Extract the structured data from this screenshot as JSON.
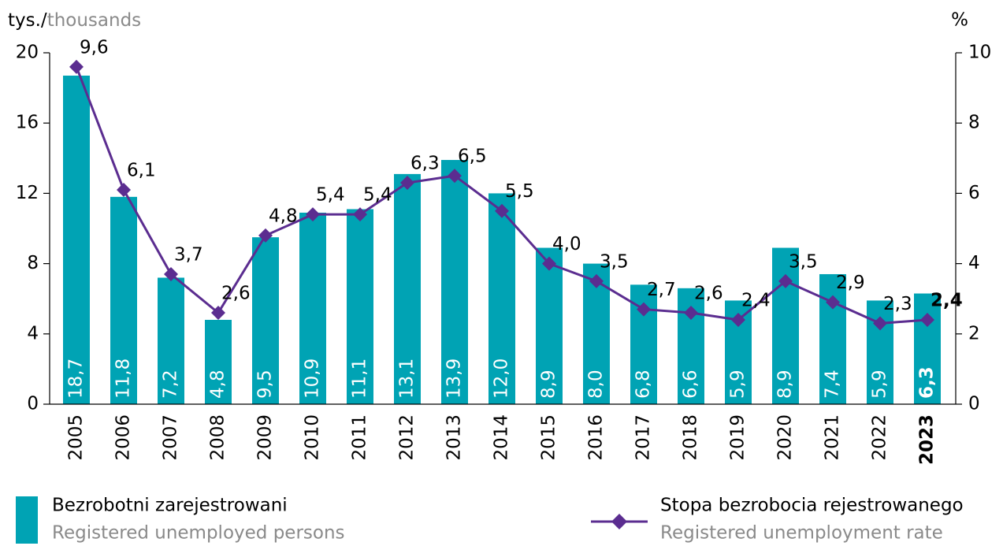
{
  "chart_data": {
    "type": "bar_line",
    "y_label": "tys./",
    "y_label_en": "thousands",
    "y2_label": "%",
    "categories": [
      "2005",
      "2006",
      "2007",
      "2008",
      "2009",
      "2010",
      "2011",
      "2012",
      "2013",
      "2014",
      "2015",
      "2016",
      "2017",
      "2018",
      "2019",
      "2020",
      "2021",
      "2022",
      "2023"
    ],
    "series": [
      {
        "name": "Bezrobotni zarejestrowani",
        "name_en": "Registered unemployed persons",
        "type": "bar",
        "color": "#00a3b4",
        "values": [
          18.7,
          11.8,
          7.2,
          4.8,
          9.5,
          10.9,
          11.1,
          13.1,
          13.9,
          12.0,
          8.9,
          8.0,
          6.8,
          6.6,
          5.9,
          8.9,
          7.4,
          5.9,
          6.3
        ],
        "value_labels": [
          "18,7",
          "11,8",
          "7,2",
          "4,8",
          "9,5",
          "10,9",
          "11,1",
          "13,1",
          "13,9",
          "12,0",
          "8,9",
          "8,0",
          "6,8",
          "6,6",
          "5,9",
          "8,9",
          "7,4",
          "5,9",
          "6,3"
        ]
      },
      {
        "name": "Stopa bezrobocia rejestrowanego",
        "name_en": "Registered unemployment rate",
        "type": "line",
        "axis": "y2",
        "color": "#5b2d90",
        "values": [
          9.6,
          6.1,
          3.7,
          2.6,
          4.8,
          5.4,
          5.4,
          6.3,
          6.5,
          5.5,
          4.0,
          3.5,
          2.7,
          2.6,
          2.4,
          3.5,
          2.9,
          2.3,
          2.4
        ],
        "value_labels": [
          "9,6",
          "6,1",
          "3,7",
          "2,6",
          "4,8",
          "5,4",
          "5,4",
          "6,3",
          "6,5",
          "5,5",
          "4,0",
          "3,5",
          "2,7",
          "2,6",
          "2,4",
          "3,5",
          "2,9",
          "2,3",
          "2,4"
        ]
      }
    ],
    "ylim": [
      0,
      20
    ],
    "yticks": [
      0,
      4,
      8,
      12,
      16,
      20
    ],
    "y2lim": [
      0,
      10
    ],
    "y2ticks": [
      0,
      2,
      4,
      6,
      8,
      10
    ]
  }
}
